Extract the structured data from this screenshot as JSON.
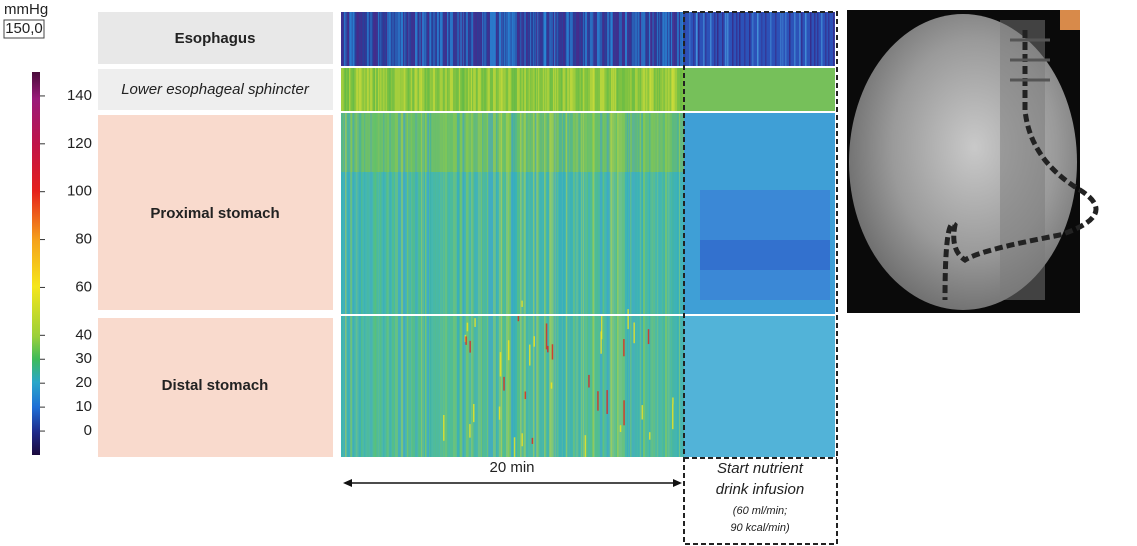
{
  "colorbar": {
    "unit": "mmHg",
    "max_label": "150,0",
    "ylim": [
      -10,
      150
    ],
    "ticks": [
      0,
      10,
      20,
      30,
      40,
      60,
      80,
      100,
      120,
      140
    ]
  },
  "regions": [
    {
      "label": "Esophagus"
    },
    {
      "label": "Lower esophageal sphincter"
    },
    {
      "label": "Proximal stomach"
    },
    {
      "label": "Distal stomach"
    }
  ],
  "time_label": "20 min",
  "annotation": {
    "line1": "Start nutrient",
    "line2": "drink infusion",
    "detail1": "(60 ml/min;",
    "detail2": "90 kcal/min)"
  }
}
